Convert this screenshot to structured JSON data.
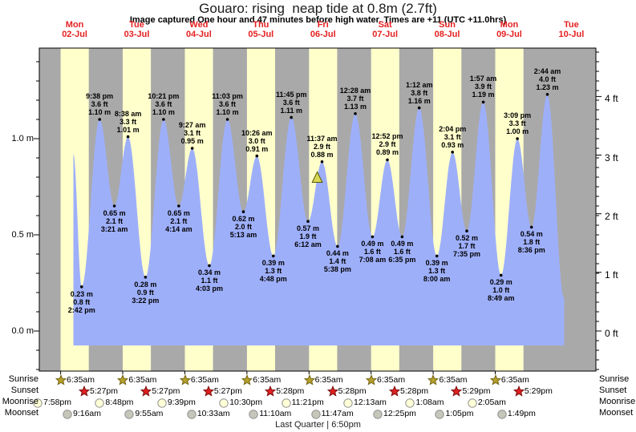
{
  "title": "Gouaro: rising  neap tide at 0.8m (2.7ft)",
  "subtitle": "Image captured One hour and 47 minutes before high water. Times are +11 (UTC +11.0hrs)",
  "days": [
    {
      "name": "Mon",
      "date": "02-Jul"
    },
    {
      "name": "Tue",
      "date": "03-Jul"
    },
    {
      "name": "Wed",
      "date": "04-Jul"
    },
    {
      "name": "Thu",
      "date": "05-Jul"
    },
    {
      "name": "Fri",
      "date": "06-Jul"
    },
    {
      "name": "Sat",
      "date": "07-Jul"
    },
    {
      "name": "Sun",
      "date": "08-Jul"
    },
    {
      "name": "Mon",
      "date": "09-Jul"
    },
    {
      "name": "Tue",
      "date": "10-Jul"
    }
  ],
  "chart_data": {
    "type": "area",
    "title": "Gouaro: rising  neap tide at 0.8m (2.7ft)",
    "ylabel_left_unit": "m",
    "ylabel_right_unit": "ft",
    "left_ticks": [
      {
        "v": 1.0,
        "label": "1.0 m"
      },
      {
        "v": 0.5,
        "label": "0.5 m"
      },
      {
        "v": 0.0,
        "label": "0.0 m"
      }
    ],
    "right_ticks": [
      {
        "ft": 4,
        "label": "4 ft"
      },
      {
        "ft": 3,
        "label": "3 ft"
      },
      {
        "ft": 2,
        "label": "2 ft"
      },
      {
        "ft": 1,
        "label": "1 ft"
      },
      {
        "ft": 0,
        "label": "0 ft"
      }
    ],
    "band_colors": {
      "night": "#a9a9a9",
      "day": "#ffffcc",
      "water": "#9eaffa"
    },
    "extremes": [
      {
        "kind": "datastart",
        "day": "Mon 02-Jul",
        "t": 11.5,
        "height_m": 0.92
      },
      {
        "kind": "low",
        "day": "Mon 02-Jul",
        "time": "2:42 pm",
        "t": 14.7,
        "height_m": 0.23,
        "height_ft": 0.8
      },
      {
        "kind": "high",
        "day": "Mon 02-Jul",
        "time": "9:38 pm",
        "t": 21.63,
        "height_m": 1.1,
        "height_ft": 3.6
      },
      {
        "kind": "low",
        "day": "Tue 03-Jul",
        "time": "3:21 am",
        "t": 27.35,
        "height_m": 0.65,
        "height_ft": 2.1
      },
      {
        "kind": "high",
        "day": "Tue 03-Jul",
        "time": "8:38 am",
        "t": 32.63,
        "height_m": 1.01,
        "height_ft": 3.3
      },
      {
        "kind": "low",
        "day": "Tue 03-Jul",
        "time": "3:22 pm",
        "t": 39.37,
        "height_m": 0.28,
        "height_ft": 0.9
      },
      {
        "kind": "high",
        "day": "Tue 03-Jul",
        "time": "10:21 pm",
        "t": 46.35,
        "height_m": 1.1,
        "height_ft": 3.6
      },
      {
        "kind": "low",
        "day": "Wed 04-Jul",
        "time": "4:14 am",
        "t": 52.23,
        "height_m": 0.65,
        "height_ft": 2.1
      },
      {
        "kind": "high",
        "day": "Wed 04-Jul",
        "time": "9:27 am",
        "t": 57.45,
        "height_m": 0.95,
        "height_ft": 3.1
      },
      {
        "kind": "low",
        "day": "Wed 04-Jul",
        "time": "4:03 pm",
        "t": 64.05,
        "height_m": 0.34,
        "height_ft": 1.1
      },
      {
        "kind": "high",
        "day": "Wed 04-Jul",
        "time": "11:03 pm",
        "t": 71.05,
        "height_m": 1.1,
        "height_ft": 3.6
      },
      {
        "kind": "low",
        "day": "Thu 05-Jul",
        "time": "5:13 am",
        "t": 77.22,
        "height_m": 0.62,
        "height_ft": 2.0
      },
      {
        "kind": "high",
        "day": "Thu 05-Jul",
        "time": "10:26 am",
        "t": 82.43,
        "height_m": 0.91,
        "height_ft": 3.0
      },
      {
        "kind": "low",
        "day": "Thu 05-Jul",
        "time": "4:48 pm",
        "t": 88.8,
        "height_m": 0.39,
        "height_ft": 1.3
      },
      {
        "kind": "high",
        "day": "Thu 05-Jul",
        "time": "11:45 pm",
        "t": 95.75,
        "height_m": 1.11,
        "height_ft": 3.6
      },
      {
        "kind": "low",
        "day": "Fri 06-Jul",
        "time": "6:12 am",
        "t": 102.2,
        "height_m": 0.57,
        "height_ft": 1.9
      },
      {
        "kind": "high",
        "day": "Fri 06-Jul",
        "time": "11:37 am",
        "t": 107.62,
        "height_m": 0.88,
        "height_ft": 2.9
      },
      {
        "kind": "low",
        "day": "Fri 06-Jul",
        "time": "5:38 pm",
        "t": 113.63,
        "height_m": 0.44,
        "height_ft": 1.4
      },
      {
        "kind": "high",
        "day": "Sat 07-Jul",
        "time": "12:28 am",
        "t": 120.47,
        "height_m": 1.13,
        "height_ft": 3.7
      },
      {
        "kind": "low",
        "day": "Sat 07-Jul",
        "time": "7:08 am",
        "t": 127.13,
        "height_m": 0.49,
        "height_ft": 1.6
      },
      {
        "kind": "high",
        "day": "Sat 07-Jul",
        "time": "12:52 pm",
        "t": 132.87,
        "height_m": 0.89,
        "height_ft": 2.9
      },
      {
        "kind": "low",
        "day": "Sat 07-Jul",
        "time": "6:35 pm",
        "t": 138.58,
        "height_m": 0.49,
        "height_ft": 1.6
      },
      {
        "kind": "high",
        "day": "Sun 08-Jul",
        "time": "1:12 am",
        "t": 145.2,
        "height_m": 1.16,
        "height_ft": 3.8
      },
      {
        "kind": "low",
        "day": "Sun 08-Jul",
        "time": "8:00 am",
        "t": 152.0,
        "height_m": 0.39,
        "height_ft": 1.3
      },
      {
        "kind": "high",
        "day": "Sun 08-Jul",
        "time": "2:04 pm",
        "t": 158.07,
        "height_m": 0.93,
        "height_ft": 3.1
      },
      {
        "kind": "low",
        "day": "Sun 08-Jul",
        "time": "7:35 pm",
        "t": 163.58,
        "height_m": 0.52,
        "height_ft": 1.7
      },
      {
        "kind": "high",
        "day": "Mon 09-Jul",
        "time": "1:57 am",
        "t": 169.95,
        "height_m": 1.19,
        "height_ft": 3.9
      },
      {
        "kind": "low",
        "day": "Mon 09-Jul",
        "time": "8:49 am",
        "t": 176.82,
        "height_m": 0.29,
        "height_ft": 1.0
      },
      {
        "kind": "high",
        "day": "Mon 09-Jul",
        "time": "3:09 pm",
        "t": 183.15,
        "height_m": 1.0,
        "height_ft": 3.3
      },
      {
        "kind": "low",
        "day": "Mon 09-Jul",
        "time": "8:36 pm",
        "t": 188.6,
        "height_m": 0.54,
        "height_ft": 1.8
      },
      {
        "kind": "high",
        "day": "Tue 10-Jul",
        "time": "2:44 am",
        "t": 194.73,
        "height_m": 1.23,
        "height_ft": 4.0
      },
      {
        "kind": "dataend",
        "day": "Tue 10-Jul",
        "t": 201.2,
        "height_m": 0.17
      }
    ],
    "current_marker": {
      "shape": "triangle",
      "t": 105.8,
      "note": "capture time marker"
    }
  },
  "astro": {
    "left_labels": [
      "Sunrise",
      "Sunset",
      "Moonrise",
      "Moonset"
    ],
    "right_labels": [
      "Sunrise",
      "Sunset",
      "Moonrise",
      "Moonset"
    ],
    "sunrise_times": [
      "6:35am",
      "6:35am",
      "6:35am",
      "6:35am",
      "6:35am",
      "6:35am",
      "6:35am",
      "6:35am"
    ],
    "sunset_times": [
      "5:27pm",
      "5:27pm",
      "5:27pm",
      "5:28pm",
      "5:28pm",
      "5:28pm",
      "5:29pm",
      "5:29pm"
    ],
    "moonrise_times": [
      "7:58pm",
      "8:48pm",
      "9:39pm",
      "10:30pm",
      "11:21pm",
      "12:13am",
      "1:08am",
      "2:05am"
    ],
    "moonset_times": [
      "9:16am",
      "9:55am",
      "10:33am",
      "11:10am",
      "11:47am",
      "12:25pm",
      "1:05pm",
      "1:49pm"
    ],
    "moon_phase": "Last Quarter | 6:50pm"
  }
}
